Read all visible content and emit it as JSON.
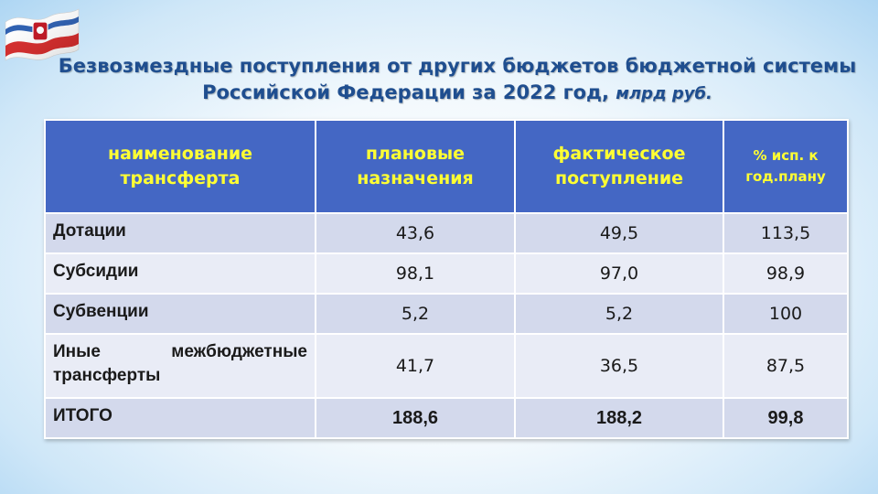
{
  "slide": {
    "title_line1": "Безвозмездные поступления от других бюджетов бюджетной системы",
    "title_line2": "Российской Федерации за 2022 год,",
    "title_unit": "млрд руб.",
    "flag_icon": "crimea-flag-icon"
  },
  "table": {
    "headers": [
      "наименование трансферта",
      "плановые назначения",
      "фактическое поступление",
      "% исп. к год.плану"
    ],
    "rows": [
      {
        "name": "Дотации",
        "plan": "43,6",
        "fact": "49,5",
        "pct": "113,5"
      },
      {
        "name": "Субсидии",
        "plan": "98,1",
        "fact": "97,0",
        "pct": "98,9"
      },
      {
        "name": "Субвенции",
        "plan": "5,2",
        "fact": "5,2",
        "pct": "100"
      },
      {
        "name": "Иные межбюджетные трансферты",
        "plan": "41,7",
        "fact": "36,5",
        "pct": "87,5"
      },
      {
        "name": "ИТОГО",
        "plan": "188,6",
        "fact": "188,2",
        "pct": "99,8"
      }
    ]
  },
  "colors": {
    "header_bg": "#4467c4",
    "header_text": "#ffff33",
    "row_dark": "#d3d9ec",
    "row_light": "#e9ecf6",
    "title": "#1f4e8f"
  }
}
